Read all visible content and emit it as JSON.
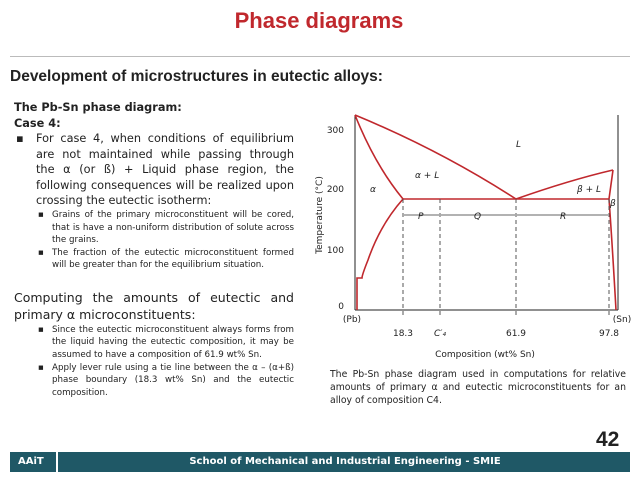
{
  "title": "Phase diagrams",
  "heading": "Development of microstructures in eutectic alloys:",
  "body": {
    "intro": "The Pb-Sn phase diagram:",
    "case": "Case 4:",
    "bullet": "For case 4, when conditions of equilibrium are not maintained while passing through the α (or ß) + Liquid phase region, the following consequences will be realized upon crossing the eutectic isotherm:",
    "subbullets": [
      "Grains of the primary microconstituent will be cored, that is have a non-uniform distribution of solute across the grains.",
      "The fraction of the eutectic microconstituent formed will be greater than for the equilibrium situation."
    ],
    "computing": "Computing the amounts of eutectic and primary α microconstituents:",
    "subbullets2": [
      "Since the eutectic microconstituent always forms from the liquid having the eutectic composition, it may be assumed to have a composition of 61.9 wt% Sn.",
      "Apply lever rule using a tie line between the α – (α+ß) phase boundary (18.3 wt% Sn) and the eutectic composition."
    ]
  },
  "figure": {
    "y_axis_label": "Temperature (°C)",
    "x_axis_label": "Composition (wt% Sn)",
    "yticks": [
      "0",
      "100",
      "200",
      "300"
    ],
    "xticks": [
      "18.3",
      "C′₄",
      "61.9",
      "97.8"
    ],
    "ends": [
      "(Pb)",
      "(Sn)"
    ],
    "regions": [
      "L",
      "α",
      "α + L",
      "β + L",
      "β",
      "P",
      "Q",
      "R"
    ],
    "caption": "The Pb-Sn phase diagram used in computations for relative amounts of primary α and eutectic microconstituents for an alloy of composition C4."
  },
  "page_number": "42",
  "footer": {
    "left": "AAiT",
    "center": "School of Mechanical and Industrial Engineering - SMIE"
  }
}
